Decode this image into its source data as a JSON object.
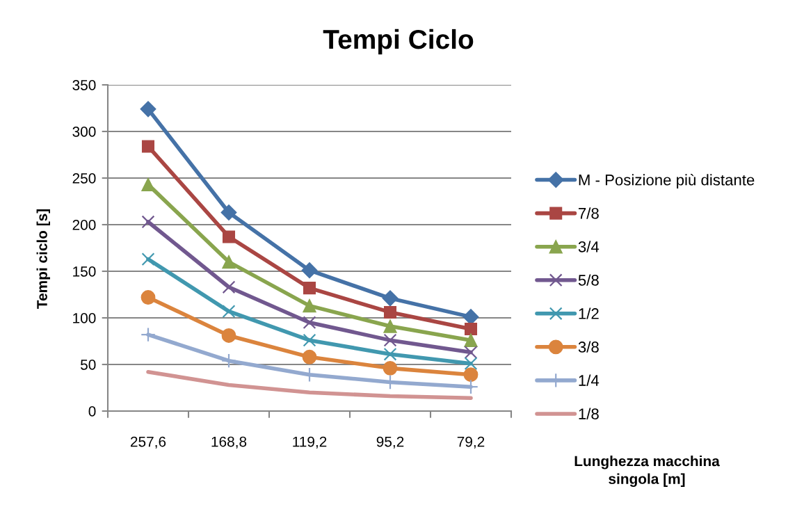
{
  "chart_data": {
    "type": "line",
    "title": "Tempi Ciclo",
    "xlabel": "Lunghezza macchina\nsingola [m]",
    "ylabel": "Tempi ciclo [s]",
    "categories": [
      "257,6",
      "168,8",
      "119,2",
      "95,2",
      "79,2"
    ],
    "ylim": [
      0,
      350
    ],
    "yticks": [
      0,
      50,
      100,
      150,
      200,
      250,
      300,
      350
    ],
    "grid": "y",
    "legend": "right",
    "line_style": "solid",
    "series": [
      {
        "name": "M - Posizione più distante",
        "color": "#4572a7",
        "marker": "diamond",
        "values": [
          324,
          213,
          151,
          121,
          101
        ]
      },
      {
        "name": "7/8",
        "color": "#aa4643",
        "marker": "square",
        "values": [
          284,
          187,
          132,
          106,
          88
        ]
      },
      {
        "name": "3/4",
        "color": "#89a54e",
        "marker": "triangle",
        "values": [
          243,
          160,
          113,
          91,
          76
        ]
      },
      {
        "name": "5/8",
        "color": "#71588f",
        "marker": "cross",
        "values": [
          203,
          133,
          95,
          76,
          63
        ]
      },
      {
        "name": "1/2",
        "color": "#4198af",
        "marker": "cross",
        "values": [
          163,
          107,
          76,
          61,
          51
        ]
      },
      {
        "name": "3/8",
        "color": "#db843d",
        "marker": "circle",
        "values": [
          122,
          81,
          58,
          46,
          39
        ]
      },
      {
        "name": "1/4",
        "color": "#93a9cf",
        "marker": "plus",
        "values": [
          82,
          54,
          39,
          31,
          26
        ]
      },
      {
        "name": "1/8",
        "color": "#d19392",
        "marker": "none",
        "values": [
          42,
          28,
          20,
          16,
          14
        ]
      }
    ]
  }
}
